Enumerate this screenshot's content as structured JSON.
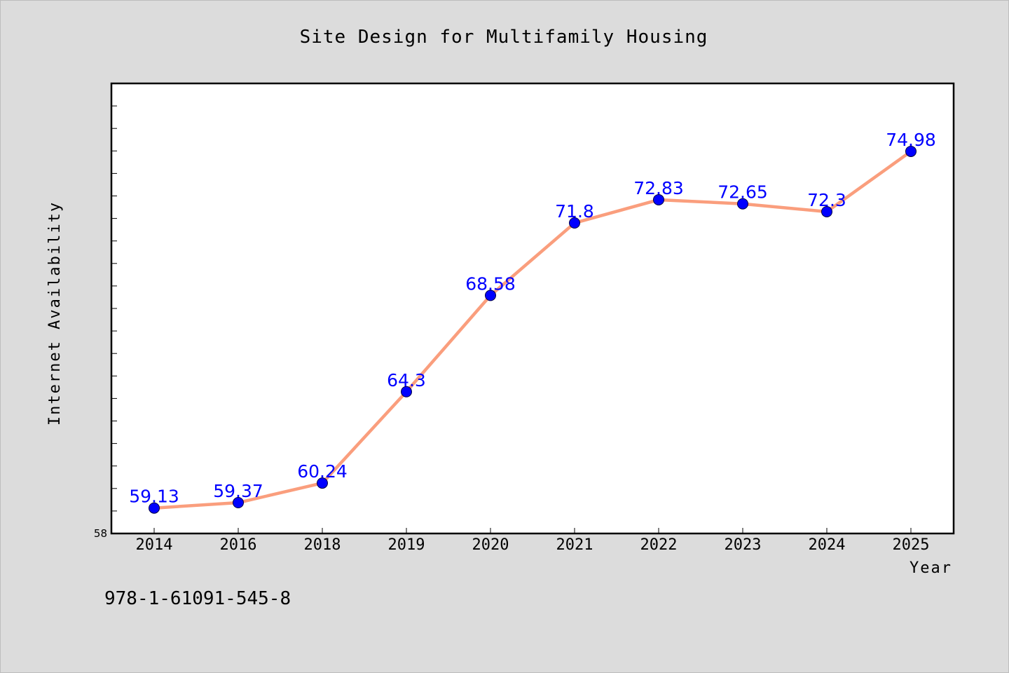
{
  "chart_data": {
    "type": "line",
    "title": "Site Design for Multifamily Housing",
    "xlabel": "Year",
    "ylabel": "Internet Availability",
    "categories": [
      "2014",
      "2016",
      "2018",
      "2019",
      "2020",
      "2021",
      "2022",
      "2023",
      "2024",
      "2025"
    ],
    "series": [
      {
        "values": [
          59.13,
          59.37,
          60.24,
          64.3,
          68.58,
          71.8,
          72.83,
          72.65,
          72.3,
          74.98
        ],
        "data_labels": [
          "59.13",
          "59.37",
          "60.24",
          "64.3",
          "68.58",
          "71.8",
          "72.83",
          "72.65",
          "72.3",
          "74.98"
        ]
      }
    ],
    "ylim": [
      58,
      78
    ],
    "yticks_labeled": [
      "58"
    ],
    "ytick_step": 1,
    "grid": false,
    "line_color": "#fa9e7d",
    "marker_color": "#0000ff",
    "label_color": "#0000ff",
    "plot_background": "#ffffff",
    "figure_background": "#dcdcdc"
  },
  "annotation": {
    "isbn": "978-1-61091-545-8"
  }
}
